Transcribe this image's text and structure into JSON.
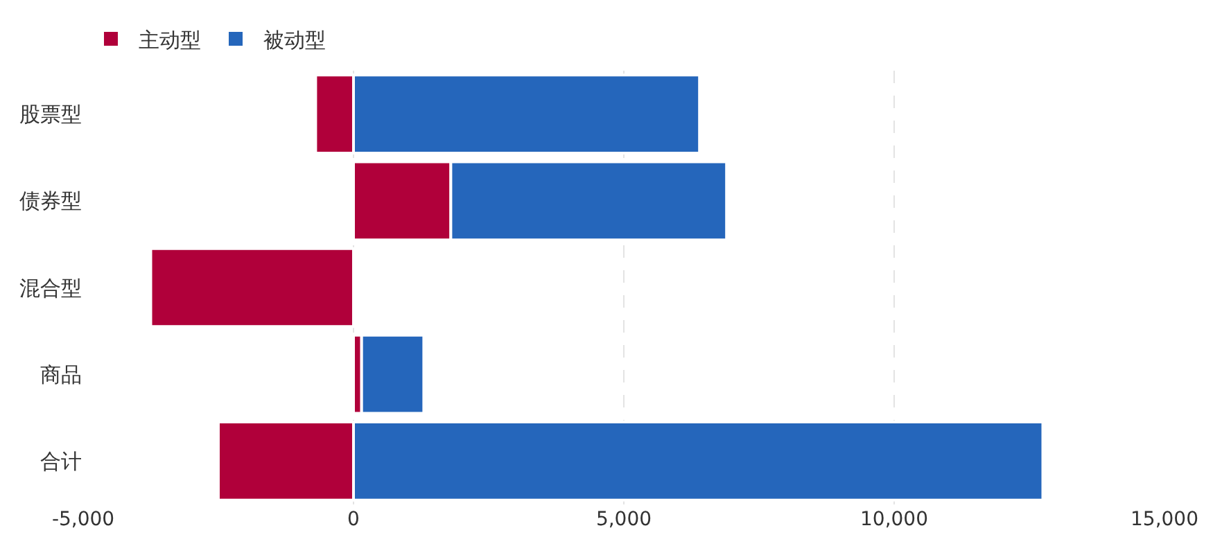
{
  "chart_data": {
    "type": "bar",
    "orientation": "horizontal",
    "stacked": true,
    "categories": [
      "股票型",
      "债券型",
      "混合型",
      "商品",
      "合计"
    ],
    "series": [
      {
        "name": "主动型",
        "color": "#b0003a",
        "values": [
          -700,
          1800,
          -3750,
          150,
          -2500
        ]
      },
      {
        "name": "被动型",
        "color": "#2566bb",
        "values": [
          6400,
          5100,
          null,
          1150,
          12750
        ]
      }
    ],
    "xlim": [
      -5000,
      15000
    ],
    "xticks": [
      {
        "value": -5000,
        "label": "-5,000"
      },
      0,
      {
        "value": 5000,
        "label": "5,000"
      },
      {
        "value": 10000,
        "label": "10,000"
      },
      {
        "value": 15000,
        "label": "15,000"
      }
    ],
    "grid": "x",
    "legend": "top left"
  }
}
